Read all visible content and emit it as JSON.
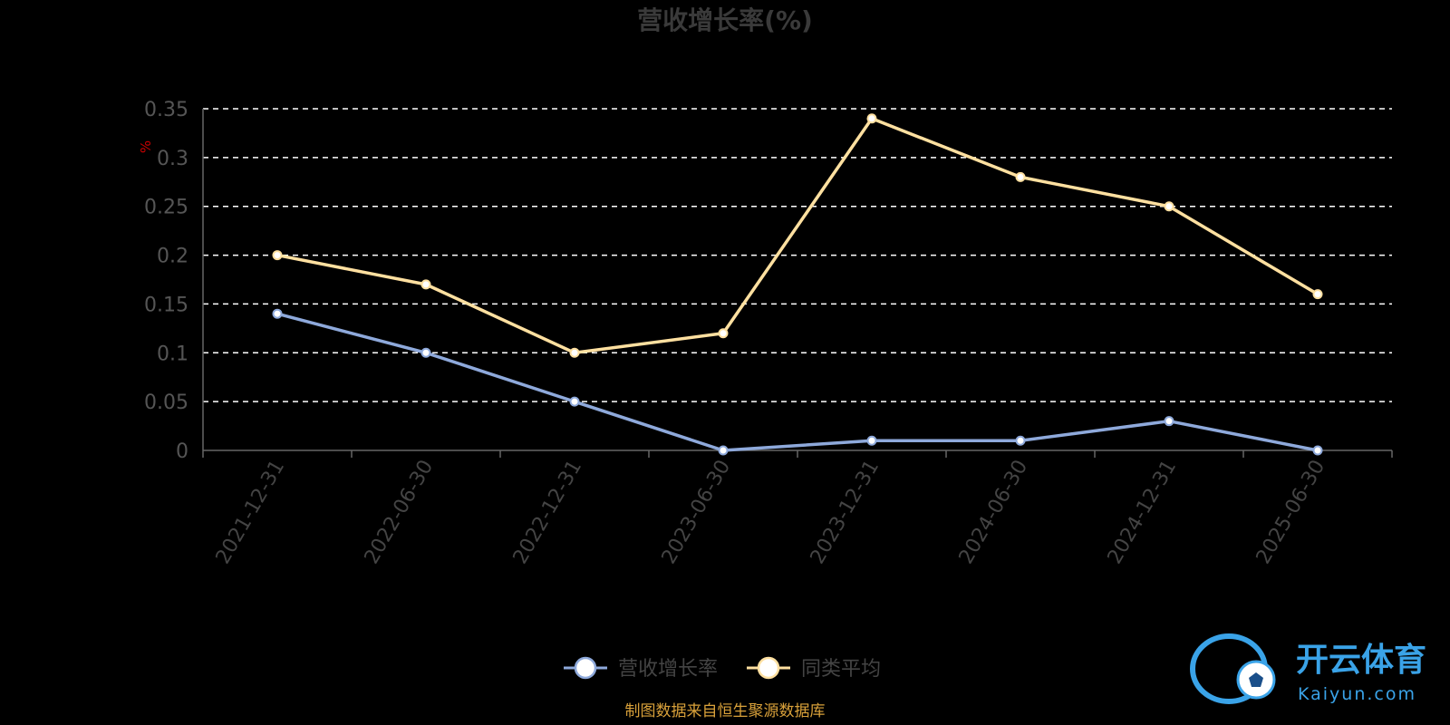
{
  "chart_data": {
    "type": "line",
    "title": "营收增长率(%)",
    "ylabel": "%",
    "categories": [
      "2021-12-31",
      "2022-06-30",
      "2022-12-31",
      "2023-06-30",
      "2023-12-31",
      "2024-06-30",
      "2024-12-31",
      "2025-06-30"
    ],
    "yticks": [
      "0",
      "0.05",
      "0.1",
      "0.15",
      "0.2",
      "0.25",
      "0.3",
      "0.35"
    ],
    "ylim": [
      0,
      0.35
    ],
    "grid": true,
    "legend_position": "bottom",
    "series": [
      {
        "name": "营收增长率",
        "color": "#8ea9db",
        "values": [
          0.14,
          0.1,
          0.05,
          0.0,
          0.01,
          0.01,
          0.03,
          0.0
        ]
      },
      {
        "name": "同类平均",
        "color": "#ffe0a0",
        "values": [
          0.2,
          0.17,
          0.1,
          0.12,
          0.34,
          0.28,
          0.25,
          0.16
        ]
      }
    ]
  },
  "source_note": "制图数据来自恒生聚源数据库",
  "watermark": {
    "cn": "开云体育",
    "en": "Kaiyun.com"
  }
}
